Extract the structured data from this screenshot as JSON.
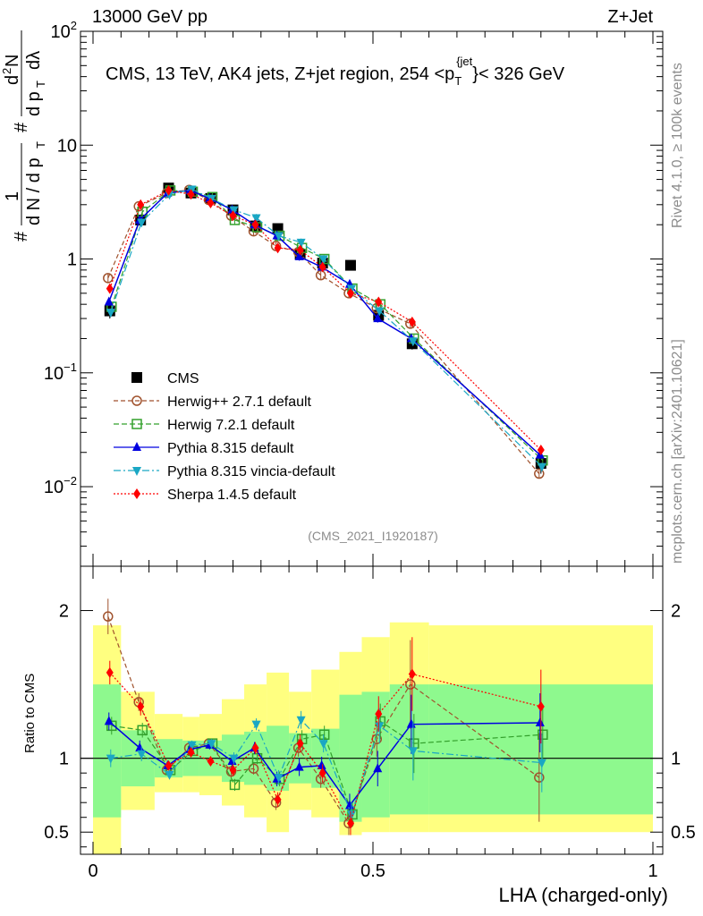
{
  "header": {
    "left": "13000 GeV pp",
    "right": "Z+Jet",
    "side_rivet": "Rivet 4.1.0, ≥ 100k events",
    "side_mcplots": "mcplots.cern.ch [arXiv:2401.10621]",
    "analysis_tag": "(CMS_2021_I1920187)"
  },
  "chart_data": {
    "type": "line",
    "title": "CMS, 13 TeV, AK4 jets, Z+jet region, 254 <p_T^{jet}< 326 GeV",
    "title_parts": {
      "main": "CMS, 13 TeV, AK4 jets, Z+jet region, 254 <p",
      "sub": "T",
      "sup": "{jet",
      "tail": "}< 326 GeV"
    },
    "xlabel": "LHA (charged-only)",
    "ylabel": "1/(dN/dp_T) d²N/(dp_T dλ)",
    "ylabel_parts": {
      "hash": "#",
      "one": "1",
      "dN": "d N / d p",
      "dN_sub": "T",
      "d2N": "d",
      "d2N_sup": "2",
      "N": "N",
      "dpt": "d p",
      "dpt_sub": "T",
      "dlambda": "dλ"
    },
    "ratio_ylabel": "Ratio to CMS",
    "xlim": [
      0,
      1
    ],
    "ylim": [
      0.002,
      100
    ],
    "yscale": "log",
    "ratio_ylim": [
      0.35,
      2.3
    ],
    "x_ticks": [
      "0",
      "0.5",
      "1"
    ],
    "y_ticks": [
      {
        "base": "10",
        "exp": "2",
        "value": 100
      },
      {
        "base": "10",
        "exp": "",
        "value": 10
      },
      {
        "base": "1",
        "exp": "",
        "value": 1
      },
      {
        "base": "10",
        "exp": "−1",
        "value": 0.1
      },
      {
        "base": "10",
        "exp": "−2",
        "value": 0.01
      }
    ],
    "ratio_ticks": [
      {
        "label": "2",
        "value": 2
      },
      {
        "label": "1",
        "value": 1
      },
      {
        "label": "0.5",
        "value": 0.5
      }
    ],
    "bin_edges": [
      0,
      0.05,
      0.11,
      0.16,
      0.19,
      0.23,
      0.27,
      0.31,
      0.35,
      0.39,
      0.44,
      0.48,
      0.53,
      0.6,
      1.0
    ],
    "x": [
      0.03,
      0.085,
      0.135,
      0.175,
      0.21,
      0.25,
      0.29,
      0.33,
      0.37,
      0.41,
      0.46,
      0.51,
      0.57,
      0.8
    ],
    "series": [
      {
        "name": "CMS",
        "values": [
          0.35,
          2.2,
          4.2,
          3.8,
          3.4,
          2.7,
          1.95,
          1.85,
          1.1,
          0.92,
          0.88,
          0.32,
          0.18,
          0.016
        ],
        "color": "#000000"
      },
      {
        "name": "Herwig++ 2.7.1 default",
        "values": [
          0.68,
          2.9,
          3.8,
          4.05,
          3.3,
          2.4,
          1.75,
          1.3,
          1.15,
          0.72,
          0.5,
          0.37,
          0.27,
          0.013
        ],
        "color": "#a0522d",
        "ratio": [
          1.96,
          1.38,
          0.92,
          1.07,
          1.1,
          0.91,
          0.93,
          0.7,
          1.07,
          0.86,
          0.56,
          1.13,
          1.5,
          0.87
        ],
        "ratio_err": [
          0.12,
          0.06,
          0.03,
          0.03,
          0.03,
          0.04,
          0.04,
          0.05,
          0.06,
          0.06,
          0.08,
          0.12,
          0.3,
          0.3
        ]
      },
      {
        "name": "Herwig 7.2.1 default",
        "values": [
          0.38,
          2.6,
          4.0,
          3.9,
          3.5,
          2.2,
          1.9,
          1.6,
          1.25,
          1.0,
          0.55,
          0.4,
          0.2,
          0.017
        ],
        "color": "#33a02c",
        "ratio": [
          1.22,
          1.19,
          0.92,
          1.05,
          1.1,
          0.82,
          1.0,
          0.86,
          1.13,
          1.16,
          0.62,
          1.25,
          1.1,
          1.16
        ],
        "ratio_err": [
          0.06,
          0.05,
          0.03,
          0.03,
          0.03,
          0.04,
          0.04,
          0.05,
          0.06,
          0.06,
          0.08,
          0.12,
          0.2,
          0.2
        ]
      },
      {
        "name": "Pythia 8.315 default",
        "values": [
          0.42,
          2.2,
          3.8,
          4.0,
          3.4,
          2.7,
          2.0,
          1.6,
          1.05,
          0.85,
          0.6,
          0.3,
          0.2,
          0.019
        ],
        "color": "#0000e0",
        "ratio": [
          1.25,
          1.07,
          0.95,
          1.06,
          1.09,
          0.98,
          1.07,
          0.86,
          0.94,
          0.95,
          0.68,
          0.93,
          1.23,
          1.24
        ],
        "ratio_err": [
          0.06,
          0.05,
          0.03,
          0.03,
          0.03,
          0.04,
          0.04,
          0.05,
          0.06,
          0.06,
          0.08,
          0.12,
          0.2,
          0.2
        ]
      },
      {
        "name": "Pythia 8.315 vincia-default",
        "values": [
          0.34,
          2.1,
          3.7,
          4.1,
          3.4,
          2.7,
          2.3,
          1.6,
          1.4,
          1.0,
          0.55,
          0.35,
          0.19,
          0.015
        ],
        "color": "#1aa7c4",
        "ratio": [
          1.0,
          1.03,
          0.89,
          1.09,
          1.1,
          1.0,
          1.23,
          0.87,
          1.26,
          1.1,
          0.62,
          1.22,
          1.05,
          0.97
        ],
        "ratio_err": [
          0.06,
          0.05,
          0.03,
          0.03,
          0.03,
          0.04,
          0.04,
          0.05,
          0.06,
          0.06,
          0.08,
          0.12,
          0.2,
          0.2
        ]
      },
      {
        "name": "Sherpa 1.4.5 default",
        "values": [
          0.55,
          3.0,
          4.0,
          3.7,
          3.1,
          2.4,
          2.0,
          1.25,
          1.2,
          0.85,
          0.5,
          0.42,
          0.28,
          0.021
        ],
        "color": "#ff0000",
        "ratio": [
          1.58,
          1.35,
          0.95,
          1.04,
          0.98,
          0.92,
          1.07,
          0.72,
          1.1,
          0.9,
          0.56,
          1.3,
          1.57,
          1.35
        ],
        "ratio_err": [
          0.08,
          0.06,
          0.03,
          0.03,
          0.03,
          0.04,
          0.04,
          0.05,
          0.06,
          0.06,
          0.08,
          0.12,
          0.25,
          0.25
        ]
      }
    ],
    "cms_errors": [
      0.05,
      0.2,
      0.2,
      0.15,
      0.15,
      0.12,
      0.1,
      0.12,
      0.08,
      0.07,
      0.07,
      0.04,
      0.02,
      0.003
    ],
    "band_green": [
      [
        0.6,
        1.5
      ],
      [
        0.81,
        1.19
      ],
      [
        0.87,
        1.13
      ],
      [
        0.88,
        1.12
      ],
      [
        0.88,
        1.12
      ],
      [
        0.84,
        1.16
      ],
      [
        0.82,
        1.18
      ],
      [
        0.78,
        1.22
      ],
      [
        0.83,
        1.17
      ],
      [
        0.8,
        1.2
      ],
      [
        0.57,
        1.43
      ],
      [
        0.6,
        1.45
      ],
      [
        0.62,
        1.5
      ],
      [
        0.62,
        1.5
      ]
    ],
    "band_yellow": [
      [
        0.35,
        1.9
      ],
      [
        0.65,
        1.45
      ],
      [
        0.77,
        1.3
      ],
      [
        0.77,
        1.28
      ],
      [
        0.75,
        1.3
      ],
      [
        0.68,
        1.4
      ],
      [
        0.6,
        1.5
      ],
      [
        0.5,
        1.58
      ],
      [
        0.65,
        1.45
      ],
      [
        0.6,
        1.6
      ],
      [
        0.48,
        1.72
      ],
      [
        0.5,
        1.82
      ],
      [
        0.5,
        1.92
      ],
      [
        0.5,
        1.9
      ]
    ]
  }
}
